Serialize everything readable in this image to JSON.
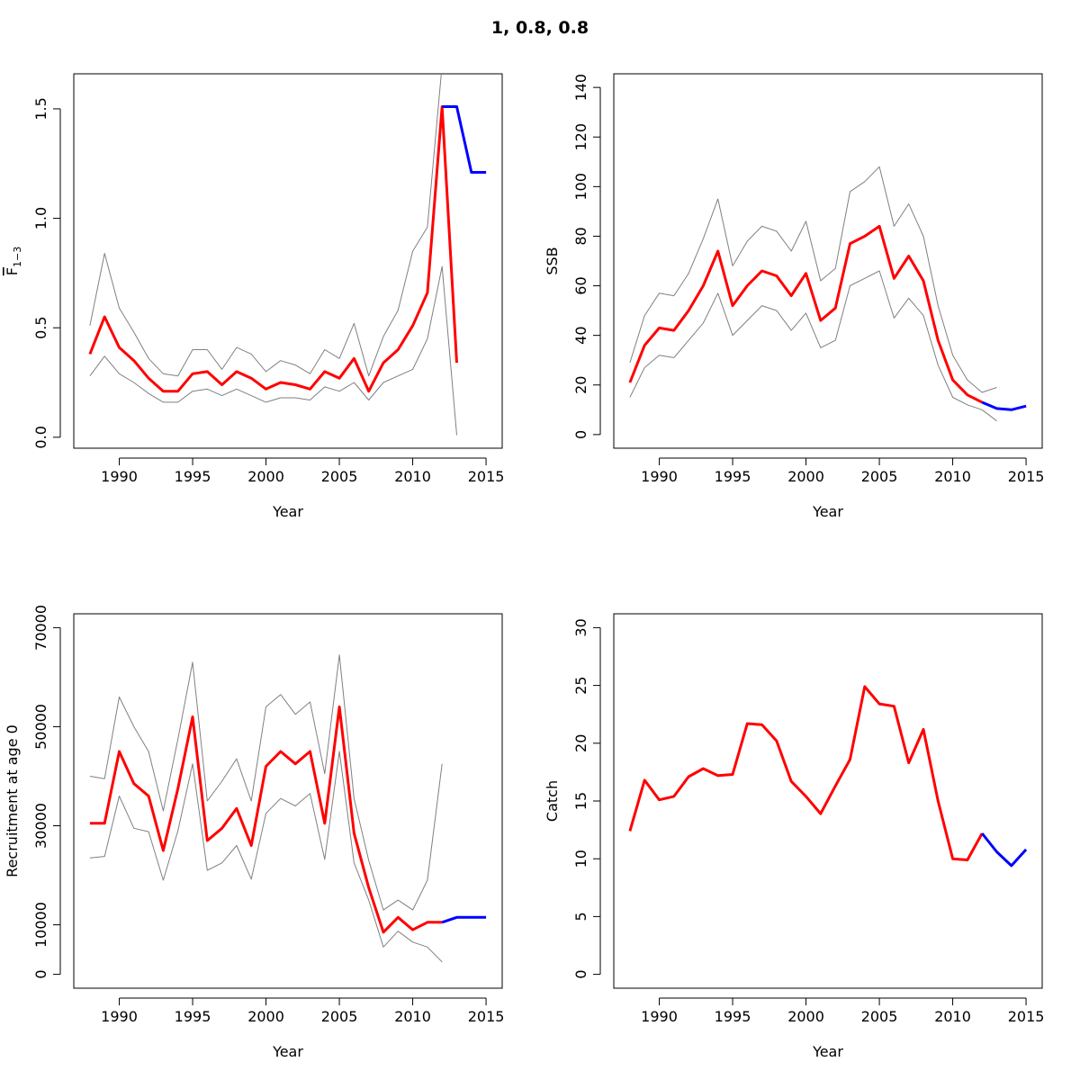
{
  "page_title": "1, 0.8, 0.8",
  "colors": {
    "estimate": "#ff0000",
    "forecast": "#0000ff",
    "interval": "#808080",
    "axis": "#000000"
  },
  "chart_data": [
    {
      "id": "fbar",
      "type": "line",
      "xlabel": "Year",
      "ylabel_main": "F",
      "ylabel_sub": "1−3",
      "xlim": [
        1986.9,
        2016.1
      ],
      "ylim": [
        -0.05,
        1.66
      ],
      "xticks": [
        1990,
        1995,
        2000,
        2005,
        2010,
        2015
      ],
      "yticks": [
        0.0,
        0.5,
        1.0,
        1.5
      ],
      "ytick_labels": [
        "0.0",
        "0.5",
        "1.0",
        "1.5"
      ],
      "series": [
        {
          "role": "estimate",
          "x": [
            1988,
            1989,
            1990,
            1991,
            1992,
            1993,
            1994,
            1995,
            1996,
            1997,
            1998,
            1999,
            2000,
            2001,
            2002,
            2003,
            2004,
            2005,
            2006,
            2007,
            2008,
            2009,
            2010,
            2011,
            2012,
            2013
          ],
          "y": [
            0.38,
            0.55,
            0.41,
            0.35,
            0.27,
            0.21,
            0.21,
            0.29,
            0.3,
            0.24,
            0.3,
            0.27,
            0.22,
            0.25,
            0.24,
            0.22,
            0.3,
            0.27,
            0.36,
            0.21,
            0.34,
            0.4,
            0.51,
            0.66,
            1.51,
            0.34
          ]
        },
        {
          "role": "upper",
          "x": [
            1988,
            1989,
            1990,
            1991,
            1992,
            1993,
            1994,
            1995,
            1996,
            1997,
            1998,
            1999,
            2000,
            2001,
            2002,
            2003,
            2004,
            2005,
            2006,
            2007,
            2008,
            2009,
            2010,
            2011,
            2012
          ],
          "y": [
            0.51,
            0.84,
            0.59,
            0.48,
            0.36,
            0.29,
            0.28,
            0.4,
            0.4,
            0.31,
            0.41,
            0.38,
            0.3,
            0.35,
            0.33,
            0.29,
            0.4,
            0.36,
            0.52,
            0.28,
            0.46,
            0.58,
            0.85,
            0.96,
            1.7
          ]
        },
        {
          "role": "lower",
          "x": [
            1988,
            1989,
            1990,
            1991,
            1992,
            1993,
            1994,
            1995,
            1996,
            1997,
            1998,
            1999,
            2000,
            2001,
            2002,
            2003,
            2004,
            2005,
            2006,
            2007,
            2008,
            2009,
            2010,
            2011,
            2012,
            2013
          ],
          "y": [
            0.28,
            0.37,
            0.29,
            0.25,
            0.2,
            0.16,
            0.16,
            0.21,
            0.22,
            0.19,
            0.22,
            0.19,
            0.16,
            0.18,
            0.18,
            0.17,
            0.23,
            0.21,
            0.25,
            0.17,
            0.25,
            0.28,
            0.31,
            0.45,
            0.78,
            0.01
          ]
        },
        {
          "role": "forecast",
          "x": [
            2012,
            2013,
            2014,
            2015
          ],
          "y": [
            1.51,
            1.51,
            1.21,
            1.21
          ]
        }
      ]
    },
    {
      "id": "ssb",
      "type": "line",
      "xlabel": "Year",
      "ylabel": "SSB",
      "xlim": [
        1986.9,
        2016.1
      ],
      "ylim": [
        -5.5,
        145.5
      ],
      "xticks": [
        1990,
        1995,
        2000,
        2005,
        2010,
        2015
      ],
      "yticks": [
        0,
        20,
        40,
        60,
        80,
        100,
        120,
        140
      ],
      "ytick_labels": [
        "0",
        "20",
        "40",
        "60",
        "80",
        "100",
        "120",
        "140"
      ],
      "series": [
        {
          "role": "estimate",
          "x": [
            1988,
            1989,
            1990,
            1991,
            1992,
            1993,
            1994,
            1995,
            1996,
            1997,
            1998,
            1999,
            2000,
            2001,
            2002,
            2003,
            2004,
            2005,
            2006,
            2007,
            2008,
            2009,
            2010,
            2011,
            2012
          ],
          "y": [
            21,
            36,
            43,
            42,
            50,
            60,
            74,
            52,
            60,
            66,
            64,
            56,
            65,
            46,
            51,
            77,
            80,
            84,
            63,
            72,
            62,
            38,
            22,
            16,
            13
          ]
        },
        {
          "role": "upper",
          "x": [
            1988,
            1989,
            1990,
            1991,
            1992,
            1993,
            1994,
            1995,
            1996,
            1997,
            1998,
            1999,
            2000,
            2001,
            2002,
            2003,
            2004,
            2005,
            2006,
            2007,
            2008,
            2009,
            2010,
            2011,
            2012,
            2013
          ],
          "y": [
            29,
            48,
            57,
            56,
            65,
            79,
            95,
            68,
            78,
            84,
            82,
            74,
            86,
            62,
            67,
            98,
            102,
            108,
            84,
            93,
            80,
            52,
            32,
            22,
            17,
            19
          ]
        },
        {
          "role": "lower",
          "x": [
            1988,
            1989,
            1990,
            1991,
            1992,
            1993,
            1994,
            1995,
            1996,
            1997,
            1998,
            1999,
            2000,
            2001,
            2002,
            2003,
            2004,
            2005,
            2006,
            2007,
            2008,
            2009,
            2010,
            2011,
            2012,
            2013
          ],
          "y": [
            15,
            27,
            32,
            31,
            38,
            45,
            57,
            40,
            46,
            52,
            50,
            42,
            49,
            35,
            38,
            60,
            63,
            66,
            47,
            55,
            48,
            28,
            15,
            12,
            10,
            5.5
          ]
        },
        {
          "role": "forecast",
          "x": [
            2012,
            2013,
            2014,
            2015
          ],
          "y": [
            13,
            10.5,
            10,
            11.5
          ]
        }
      ]
    },
    {
      "id": "recruitment",
      "type": "line",
      "xlabel": "Year",
      "ylabel": "Recruitment at age 0",
      "xlim": [
        1986.9,
        2016.1
      ],
      "ylim": [
        -2800,
        72800
      ],
      "xticks": [
        1990,
        1995,
        2000,
        2005,
        2010,
        2015
      ],
      "yticks": [
        0,
        10000,
        30000,
        50000,
        70000
      ],
      "ytick_labels": [
        "0",
        "10000",
        "30000",
        "50000",
        "70000"
      ],
      "series": [
        {
          "role": "estimate",
          "x": [
            1988,
            1989,
            1990,
            1991,
            1992,
            1993,
            1994,
            1995,
            1996,
            1997,
            1998,
            1999,
            2000,
            2001,
            2002,
            2003,
            2004,
            2005,
            2006,
            2007,
            2008,
            2009,
            2010,
            2011,
            2012
          ],
          "y": [
            30500,
            30500,
            45000,
            38500,
            36000,
            25000,
            37500,
            52000,
            27000,
            29500,
            33500,
            26000,
            42000,
            45000,
            42500,
            45000,
            30500,
            54000,
            28500,
            17500,
            8500,
            11500,
            9000,
            10500,
            10500
          ]
        },
        {
          "role": "upper",
          "x": [
            1988,
            1989,
            1990,
            1991,
            1992,
            1993,
            1994,
            1995,
            1996,
            1997,
            1998,
            1999,
            2000,
            2001,
            2002,
            2003,
            2004,
            2005,
            2006,
            2007,
            2008,
            2009,
            2010,
            2011,
            2012
          ],
          "y": [
            40000,
            39500,
            56000,
            50000,
            45000,
            33000,
            47500,
            63000,
            35000,
            39000,
            43500,
            35000,
            54000,
            56500,
            52500,
            55000,
            40500,
            64500,
            35500,
            23000,
            13000,
            15000,
            13000,
            19000,
            42500
          ]
        },
        {
          "role": "lower",
          "x": [
            1988,
            1989,
            1990,
            1991,
            1992,
            1993,
            1994,
            1995,
            1996,
            1997,
            1998,
            1999,
            2000,
            2001,
            2002,
            2003,
            2004,
            2005,
            2006,
            2007,
            2008,
            2009,
            2010,
            2011,
            2012
          ],
          "y": [
            23500,
            23800,
            36000,
            29500,
            28800,
            19000,
            29000,
            42500,
            21000,
            22500,
            26000,
            19200,
            32500,
            35500,
            34000,
            36500,
            23200,
            45000,
            22500,
            15000,
            5500,
            8700,
            6500,
            5500,
            2500
          ]
        },
        {
          "role": "forecast",
          "x": [
            2012,
            2013,
            2014,
            2015
          ],
          "y": [
            10500,
            11500,
            11500,
            11500
          ]
        }
      ]
    },
    {
      "id": "catch",
      "type": "line",
      "xlabel": "Year",
      "ylabel": "Catch",
      "xlim": [
        1986.9,
        2016.1
      ],
      "ylim": [
        -1.2,
        31.2
      ],
      "xticks": [
        1990,
        1995,
        2000,
        2005,
        2010,
        2015
      ],
      "yticks": [
        0,
        5,
        10,
        15,
        20,
        25,
        30
      ],
      "ytick_labels": [
        "0",
        "5",
        "10",
        "15",
        "20",
        "25",
        "30"
      ],
      "series": [
        {
          "role": "estimate",
          "x": [
            1988,
            1989,
            1990,
            1991,
            1992,
            1993,
            1994,
            1995,
            1996,
            1997,
            1998,
            1999,
            2000,
            2001,
            2002,
            2003,
            2004,
            2005,
            2006,
            2007,
            2008,
            2009,
            2010,
            2011,
            2012
          ],
          "y": [
            12.4,
            16.8,
            15.1,
            15.4,
            17.1,
            17.8,
            17.2,
            17.3,
            21.7,
            21.6,
            20.2,
            16.7,
            15.4,
            13.9,
            16.3,
            18.6,
            24.9,
            23.4,
            23.2,
            18.3,
            21.2,
            15.0,
            10.0,
            9.9,
            12.2
          ]
        },
        {
          "role": "forecast",
          "x": [
            2012,
            2013,
            2014,
            2015
          ],
          "y": [
            12.2,
            10.6,
            9.4,
            10.8
          ]
        }
      ]
    }
  ]
}
